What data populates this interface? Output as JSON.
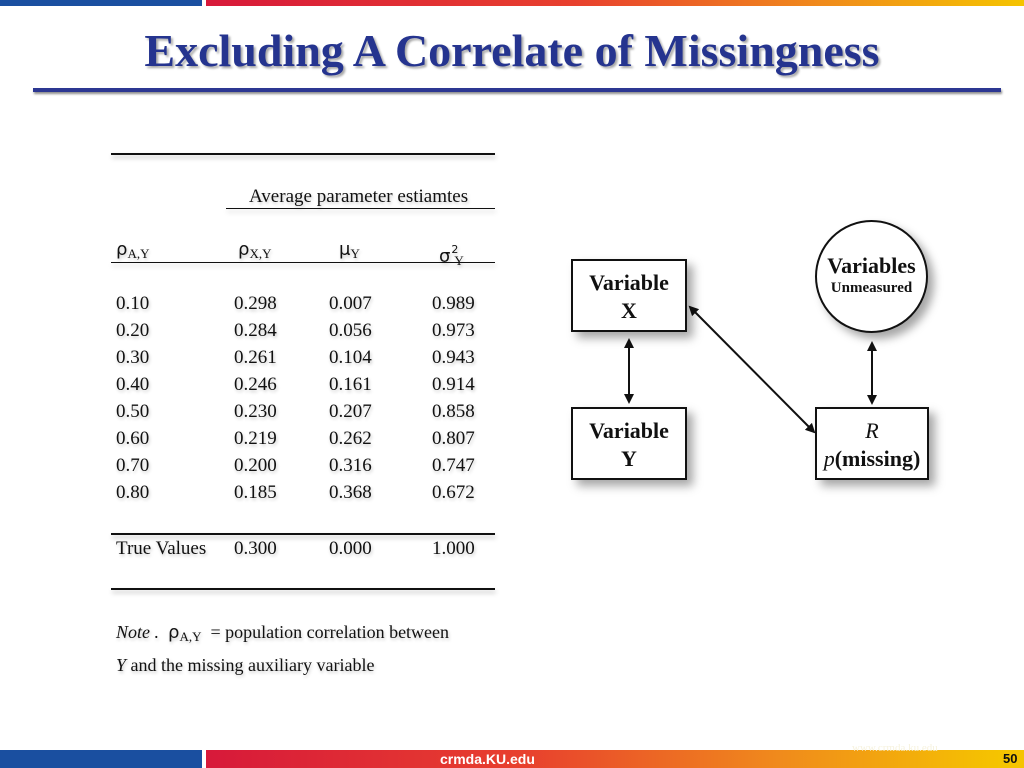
{
  "slide": {
    "title": "Excluding A Correlate of Missingness",
    "footer_site": "crmda.KU.edu",
    "footer_watermark": "www.crmda.ku.edu",
    "page_number": "50"
  },
  "table": {
    "group_header": "Average parameter estiamtes",
    "columns": [
      {
        "symbol": "ρ",
        "sub": "A,Y",
        "sup": ""
      },
      {
        "symbol": "ρ",
        "sub": "X,Y",
        "sup": ""
      },
      {
        "symbol": "μ",
        "sub": "Y",
        "sup": ""
      },
      {
        "symbol": "σ",
        "sub": "Y",
        "sup": "2"
      }
    ],
    "rows": [
      [
        "0.10",
        "0.298",
        "0.007",
        "0.989"
      ],
      [
        "0.20",
        "0.284",
        "0.056",
        "0.973"
      ],
      [
        "0.30",
        "0.261",
        "0.104",
        "0.943"
      ],
      [
        "0.40",
        "0.246",
        "0.161",
        "0.914"
      ],
      [
        "0.50",
        "0.230",
        "0.207",
        "0.858"
      ],
      [
        "0.60",
        "0.219",
        "0.262",
        "0.807"
      ],
      [
        "0.70",
        "0.200",
        "0.316",
        "0.747"
      ],
      [
        "0.80",
        "0.185",
        "0.368",
        "0.672"
      ]
    ],
    "true_values": [
      "True Values",
      "0.300",
      "0.000",
      "1.000"
    ],
    "note": {
      "label": "Note .",
      "symbol": "ρ",
      "sub": "A,Y",
      "text1": "= population correlation between",
      "var": "Y",
      "text2": "and the missing auxiliary variable"
    }
  },
  "diagram": {
    "variable_x": {
      "line1": "Variable",
      "line2": "X"
    },
    "variable_y": {
      "line1": "Variable",
      "line2": "Y"
    },
    "unmeasured": {
      "line1": "Variables",
      "line2": "Unmeasured"
    },
    "missing": {
      "line1": "R",
      "prefix": "p",
      "line2": "(missing)"
    }
  }
}
